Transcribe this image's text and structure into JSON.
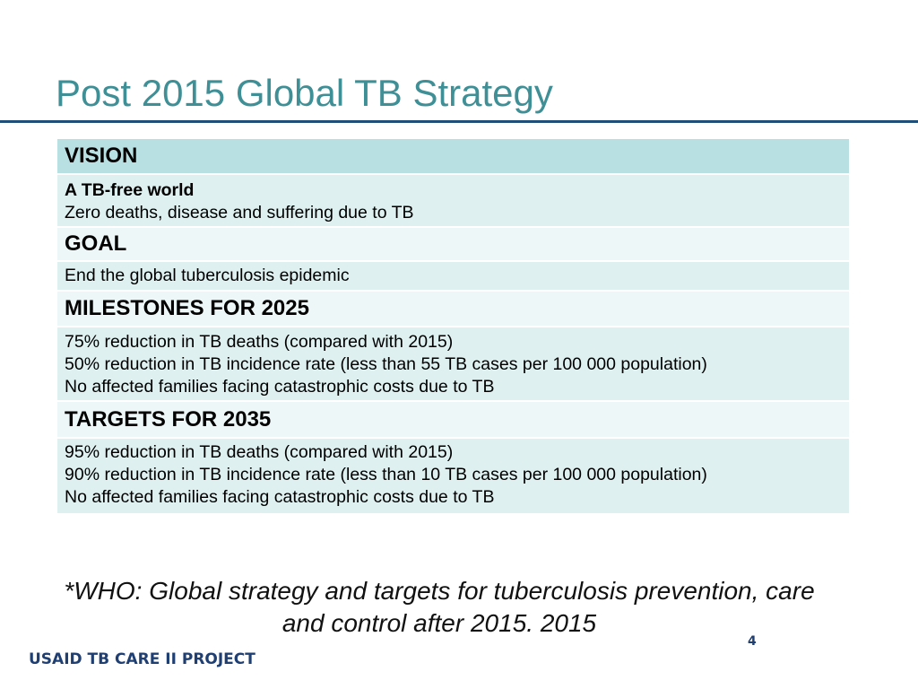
{
  "slide": {
    "title": "Post 2015 Global TB Strategy",
    "citation_line1": "*WHO: Global strategy and targets for tuberculosis prevention, care",
    "citation_line2": "and control after 2015. 2015",
    "footer": "USAID TB CARE II PROJECT",
    "page_number": "4"
  },
  "table": {
    "vision": {
      "heading": "VISION",
      "line1": "A TB-free world",
      "line2": "Zero deaths, disease and suffering due to TB"
    },
    "goal": {
      "heading": "GOAL",
      "line1": "End the global tuberculosis epidemic"
    },
    "milestones": {
      "heading": "MILESTONES FOR 2025",
      "line1": "75% reduction in TB deaths (compared with 2015)",
      "line2": "50% reduction in TB incidence rate (less than 55 TB cases per 100 000 population)",
      "line3": "No affected families facing catastrophic costs due to TB"
    },
    "targets": {
      "heading": "TARGETS FOR 2035",
      "line1": "95% reduction in TB deaths (compared with 2015)",
      "line2": "90% reduction in TB incidence rate (less than 10 TB cases per 100 000 population)",
      "line3": "No affected families facing catastrophic costs due to TB"
    }
  },
  "colors": {
    "title": "#3f8f96",
    "rule": "#1f4e79",
    "header_row": "#b8dfe2",
    "section_row": "#eef7f7",
    "body_row": "#dff0f0",
    "footer": "#1f3f73"
  }
}
